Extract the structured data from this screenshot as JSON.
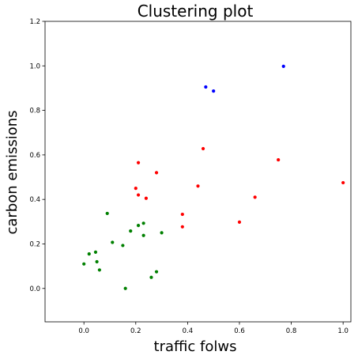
{
  "chart_data": {
    "type": "scatter",
    "title": "Clustering plot",
    "xlabel": "traffic folws",
    "ylabel": "carbon emissions",
    "xlim": [
      -0.15,
      1.03
    ],
    "ylim": [
      -0.15,
      1.2
    ],
    "xticks": [
      0.0,
      0.2,
      0.4,
      0.6,
      0.8,
      1.0
    ],
    "yticks": [
      0.0,
      0.2,
      0.4,
      0.6,
      0.8,
      1.0,
      1.2
    ],
    "xtick_labels": [
      "0.0",
      "0.2",
      "0.4",
      "0.6",
      "0.8",
      "1.0"
    ],
    "ytick_labels": [
      "0.0",
      "0.2",
      "0.4",
      "0.6",
      "0.8",
      "1.0",
      "1.2"
    ],
    "grid": false,
    "legend": "none",
    "series": [
      {
        "color": "#0000ff",
        "points": [
          {
            "x": 0.47,
            "y": 0.905
          },
          {
            "x": 0.5,
            "y": 0.887
          },
          {
            "x": 0.77,
            "y": 0.998
          }
        ]
      },
      {
        "color": "#ff0000",
        "points": [
          {
            "x": 0.21,
            "y": 0.565
          },
          {
            "x": 0.28,
            "y": 0.52
          },
          {
            "x": 0.2,
            "y": 0.45
          },
          {
            "x": 0.21,
            "y": 0.42
          },
          {
            "x": 0.24,
            "y": 0.405
          },
          {
            "x": 0.38,
            "y": 0.333
          },
          {
            "x": 0.38,
            "y": 0.277
          },
          {
            "x": 0.44,
            "y": 0.46
          },
          {
            "x": 0.46,
            "y": 0.628
          },
          {
            "x": 0.6,
            "y": 0.298
          },
          {
            "x": 0.66,
            "y": 0.41
          },
          {
            "x": 0.75,
            "y": 0.578
          },
          {
            "x": 1.0,
            "y": 0.475
          }
        ]
      },
      {
        "color": "#008000",
        "points": [
          {
            "x": 0.0,
            "y": 0.11
          },
          {
            "x": 0.02,
            "y": 0.155
          },
          {
            "x": 0.045,
            "y": 0.163
          },
          {
            "x": 0.05,
            "y": 0.12
          },
          {
            "x": 0.06,
            "y": 0.083
          },
          {
            "x": 0.09,
            "y": 0.337
          },
          {
            "x": 0.11,
            "y": 0.207
          },
          {
            "x": 0.15,
            "y": 0.193
          },
          {
            "x": 0.16,
            "y": 0.0
          },
          {
            "x": 0.18,
            "y": 0.258
          },
          {
            "x": 0.21,
            "y": 0.283
          },
          {
            "x": 0.23,
            "y": 0.293
          },
          {
            "x": 0.23,
            "y": 0.238
          },
          {
            "x": 0.26,
            "y": 0.05
          },
          {
            "x": 0.28,
            "y": 0.075
          },
          {
            "x": 0.3,
            "y": 0.25
          }
        ]
      }
    ]
  }
}
